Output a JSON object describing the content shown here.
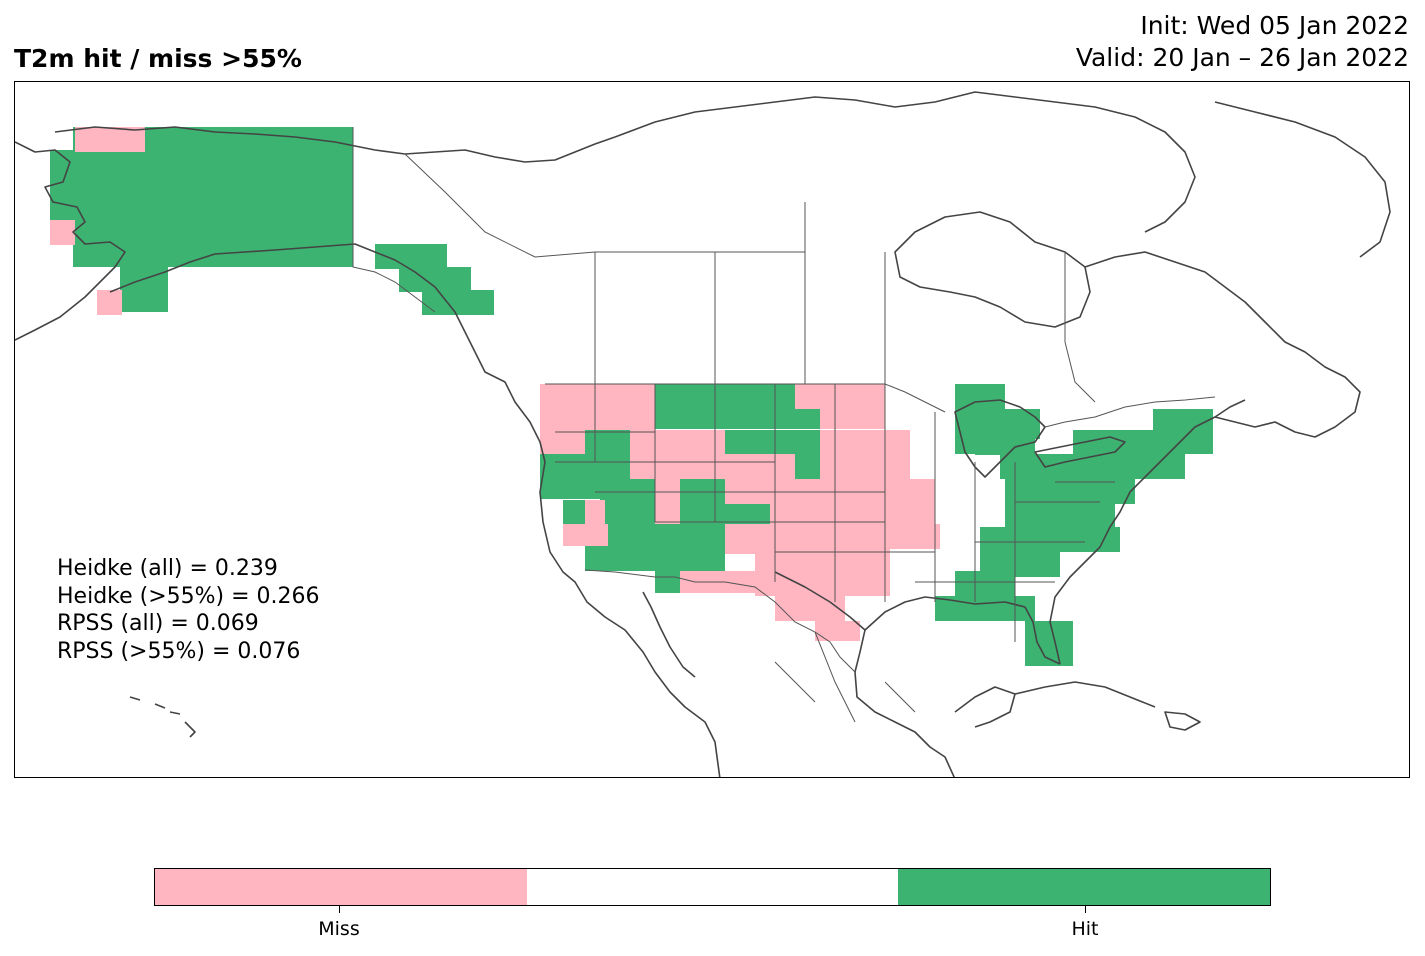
{
  "title": "T2m hit / miss  >55%",
  "init_line": "Init: Wed 05 Jan 2022",
  "valid_line": "Valid: 20 Jan – 26 Jan 2022",
  "stats": [
    "Heidke (all) = 0.239",
    "Heidke (>55%) = 0.266",
    "RPSS (all) = 0.069",
    "RPSS (>55%) = 0.076"
  ],
  "colors": {
    "miss": "#ffb6c1",
    "neutral": "#ffffff",
    "hit": "#3cb371",
    "coast": "#444444",
    "border": "#555555"
  },
  "colorbar": {
    "labels": [
      "Miss",
      "Hit"
    ]
  }
}
